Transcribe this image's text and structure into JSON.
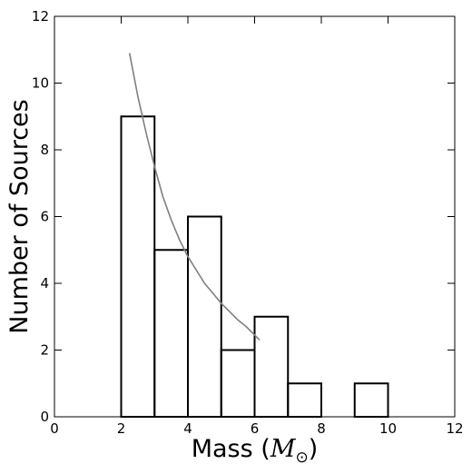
{
  "chart_data": {
    "type": "histogram",
    "title": "",
    "xlabel": "Mass (",
    "xlabel_symbol": "M",
    "xlabel_subscript": "⊙",
    "xlabel_close": ")",
    "ylabel": "Number of Sources",
    "xlim": [
      0,
      12
    ],
    "ylim": [
      0,
      12
    ],
    "xticks": [
      0,
      2,
      4,
      6,
      8,
      10,
      12
    ],
    "yticks": [
      0,
      2,
      4,
      6,
      8,
      10,
      12
    ],
    "grid": false,
    "legend": "none",
    "bins": [
      {
        "x0": 2,
        "x1": 3,
        "count": 9
      },
      {
        "x0": 3,
        "x1": 4,
        "count": 5
      },
      {
        "x0": 4,
        "x1": 5,
        "count": 6
      },
      {
        "x0": 5,
        "x1": 6,
        "count": 2
      },
      {
        "x0": 6,
        "x1": 7,
        "count": 3
      },
      {
        "x0": 7,
        "x1": 8,
        "count": 1
      },
      {
        "x0": 8,
        "x1": 9,
        "count": 0
      },
      {
        "x0": 9,
        "x1": 10,
        "count": 1
      }
    ],
    "fit_curve": {
      "color": "#808080",
      "x": [
        2.25,
        2.5,
        2.75,
        3.0,
        3.25,
        3.5,
        3.75,
        4.0,
        4.25,
        4.5,
        4.75,
        5.0,
        5.25,
        5.5,
        5.75,
        6.0,
        6.15
      ],
      "y": [
        10.9,
        9.6,
        8.5,
        7.5,
        6.6,
        5.9,
        5.3,
        4.8,
        4.4,
        4.0,
        3.7,
        3.4,
        3.15,
        2.9,
        2.7,
        2.45,
        2.3
      ]
    },
    "histogram_color": "#000000"
  }
}
